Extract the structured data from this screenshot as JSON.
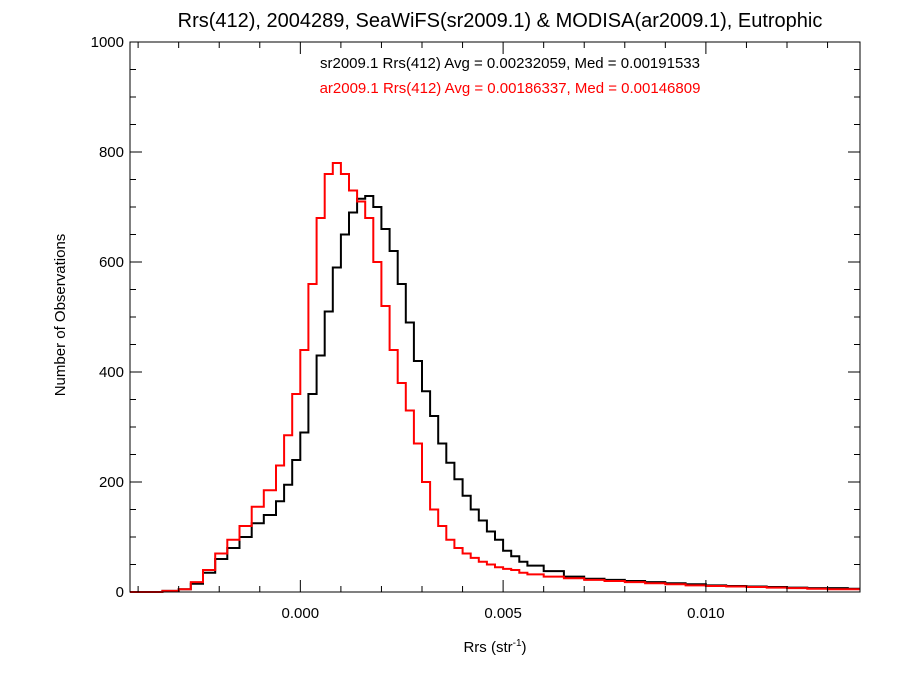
{
  "chart_data": {
    "type": "line",
    "title": "Rrs(412), 2004289, SeaWiFS(sr2009.1) & MODISA(ar2009.1), Eutrophic",
    "xlabel": {
      "main": "Rrs (str",
      "sup": "-1",
      "close": ")"
    },
    "ylabel": "Number of Observations",
    "xlim": [
      -0.0042,
      0.0138
    ],
    "ylim": [
      0,
      1000
    ],
    "x_ticks": [
      0.0,
      0.005,
      0.01
    ],
    "x_tick_labels": [
      "0.000",
      "0.005",
      "0.010"
    ],
    "y_ticks": [
      0,
      200,
      400,
      600,
      800,
      1000
    ],
    "y_tick_labels": [
      "0",
      "200",
      "400",
      "600",
      "800",
      "1000"
    ],
    "grid": false,
    "annotations": [
      {
        "text": "sr2009.1 Rrs(412) Avg = 0.00232059, Med = 0.00191533",
        "color": "#000000"
      },
      {
        "text": "ar2009.1 Rrs(412) Avg = 0.00186337, Med = 0.00146809",
        "color": "#ff0000"
      }
    ],
    "series": [
      {
        "color": "#000000",
        "style": "step",
        "x": [
          -0.0042,
          -0.0038,
          -0.0034,
          -0.003,
          -0.0027,
          -0.0024,
          -0.0021,
          -0.0018,
          -0.0015,
          -0.0012,
          -0.0009,
          -0.0006,
          -0.0004,
          -0.0002,
          0.0,
          0.0002,
          0.0004,
          0.0006,
          0.0008,
          0.001,
          0.0012,
          0.0014,
          0.0016,
          0.0018,
          0.002,
          0.0022,
          0.0024,
          0.0026,
          0.0028,
          0.003,
          0.0032,
          0.0034,
          0.0036,
          0.0038,
          0.004,
          0.0042,
          0.0044,
          0.0046,
          0.0048,
          0.005,
          0.0052,
          0.0054,
          0.0056,
          0.006,
          0.0065,
          0.007,
          0.0075,
          0.008,
          0.0085,
          0.009,
          0.0095,
          0.01,
          0.0105,
          0.011,
          0.0115,
          0.012,
          0.0125,
          0.013,
          0.0135,
          0.0138
        ],
        "y": [
          0,
          0,
          2,
          5,
          15,
          35,
          60,
          80,
          100,
          125,
          140,
          165,
          195,
          240,
          290,
          360,
          430,
          510,
          590,
          650,
          690,
          715,
          720,
          700,
          660,
          620,
          560,
          490,
          420,
          365,
          320,
          270,
          235,
          205,
          175,
          150,
          130,
          110,
          95,
          75,
          65,
          55,
          48,
          38,
          28,
          24,
          22,
          20,
          18,
          16,
          14,
          12,
          11,
          10,
          9,
          8,
          7,
          7,
          6,
          6
        ]
      },
      {
        "color": "#ff0000",
        "style": "step",
        "x": [
          -0.0042,
          -0.0038,
          -0.0034,
          -0.003,
          -0.0027,
          -0.0024,
          -0.0021,
          -0.0018,
          -0.0015,
          -0.0012,
          -0.0009,
          -0.0006,
          -0.0004,
          -0.0002,
          0.0,
          0.0002,
          0.0004,
          0.0006,
          0.0008,
          0.001,
          0.0012,
          0.0014,
          0.0016,
          0.0018,
          0.002,
          0.0022,
          0.0024,
          0.0026,
          0.0028,
          0.003,
          0.0032,
          0.0034,
          0.0036,
          0.0038,
          0.004,
          0.0042,
          0.0044,
          0.0046,
          0.0048,
          0.005,
          0.0052,
          0.0054,
          0.0056,
          0.006,
          0.0065,
          0.007,
          0.0075,
          0.008,
          0.0085,
          0.009,
          0.0095,
          0.01,
          0.0105,
          0.011,
          0.0115,
          0.012,
          0.0125,
          0.013,
          0.0135,
          0.0138
        ],
        "y": [
          0,
          0,
          2,
          5,
          18,
          40,
          70,
          95,
          120,
          155,
          185,
          230,
          285,
          360,
          440,
          560,
          680,
          760,
          780,
          760,
          730,
          710,
          680,
          600,
          520,
          440,
          380,
          330,
          270,
          200,
          150,
          120,
          95,
          80,
          70,
          62,
          55,
          50,
          45,
          42,
          40,
          35,
          32,
          28,
          25,
          22,
          20,
          18,
          16,
          14,
          12,
          11,
          10,
          9,
          8,
          7,
          6,
          5,
          5,
          5
        ]
      }
    ]
  }
}
